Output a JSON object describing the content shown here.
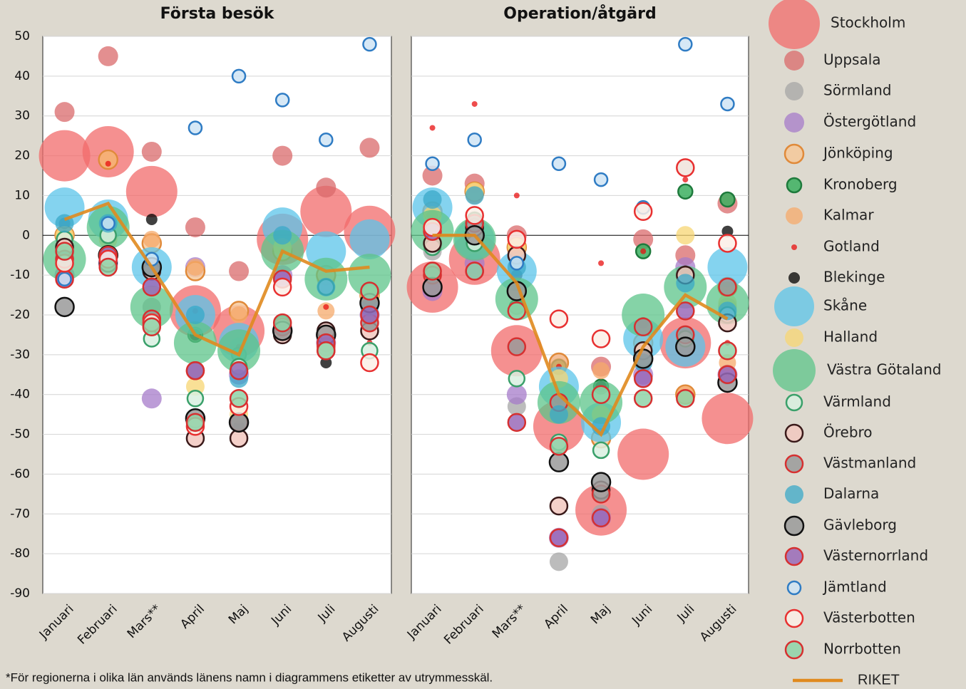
{
  "chart_data": [
    {
      "type": "scatter",
      "title": "Första besök",
      "categories": [
        "Januari",
        "Februari",
        "Mars**",
        "April",
        "Maj",
        "Juni",
        "Juli",
        "Augusti"
      ],
      "ylim": [
        -90,
        50
      ],
      "yticks": [
        50,
        40,
        30,
        20,
        10,
        0,
        -10,
        -20,
        -30,
        -40,
        -50,
        -60,
        -70,
        -80,
        -90
      ],
      "grid": true,
      "series": [
        {
          "name": "Stockholm",
          "marker": "filled",
          "color": "#f26b6b",
          "fill": "#f26b6b",
          "values": [
            20,
            21,
            11,
            -19,
            -24,
            -1,
            6,
            1
          ]
        },
        {
          "name": "Uppsala",
          "marker": "filled",
          "color": "#d9696b",
          "fill": "#d9696b",
          "values": [
            31,
            45,
            21,
            2,
            -9,
            20,
            12,
            22
          ]
        },
        {
          "name": "Sörmland",
          "marker": "filled",
          "color": "#a6a6a6",
          "fill": "#a6a6a6",
          "values": [
            -5,
            0,
            -18,
            -20,
            -28,
            -3,
            -11,
            -17
          ]
        },
        {
          "name": "Östergötland",
          "marker": "filled",
          "color": "#a57bc9",
          "fill": "#a57bc9",
          "values": [
            -10,
            -7,
            -41,
            -8,
            -35,
            -10,
            -27,
            -20
          ]
        },
        {
          "name": "Jönköping",
          "marker": "ring",
          "color": "#e08a3a",
          "fill": "#f6c89a",
          "values": [
            0,
            19,
            -2,
            -9,
            -19,
            -4,
            -10,
            -15
          ]
        },
        {
          "name": "Kronoberg",
          "marker": "ring",
          "color": "#1e7a3c",
          "fill": "#3cb060",
          "values": [
            -5,
            -7,
            -22,
            -25,
            -30,
            -22,
            -28,
            -14
          ]
        },
        {
          "name": "Kalmar",
          "marker": "filled",
          "color": "#f5a96b",
          "fill": "#f5a96b",
          "values": [
            -1,
            19,
            -1,
            -8,
            -20,
            -3,
            -19,
            -15
          ]
        },
        {
          "name": "Gotland",
          "marker": "filled",
          "color": "#e81010",
          "fill": "#e81010",
          "values": [
            -2,
            18,
            -9,
            -19,
            -28,
            -4,
            -18,
            -27
          ]
        },
        {
          "name": "Blekinge",
          "marker": "filled",
          "color": "#000000",
          "fill": "#000000",
          "values": [
            3,
            -5,
            4,
            -25,
            -48,
            -25,
            -32,
            -23
          ]
        },
        {
          "name": "Skåne",
          "marker": "filled",
          "color": "#5bc4ea",
          "fill": "#5bc4ea",
          "values": [
            7,
            4,
            -8,
            -20,
            -27,
            2,
            -4,
            -1
          ]
        },
        {
          "name": "Halland",
          "marker": "filled",
          "color": "#f7d673",
          "fill": "#f7d673",
          "values": [
            0,
            -1,
            -8,
            -38,
            -45,
            -3,
            -29,
            -15
          ]
        },
        {
          "name": "Västra Götaland",
          "marker": "filled",
          "color": "#5cc489",
          "fill": "#5cc489",
          "values": [
            -6,
            2,
            -18,
            -27,
            -29,
            -4,
            -11,
            -10
          ]
        },
        {
          "name": "Värmland",
          "marker": "ring",
          "color": "#3aa06a",
          "fill": "#d8f0e0",
          "values": [
            -1,
            0,
            -26,
            -41,
            -33,
            -23,
            -13,
            -29
          ]
        },
        {
          "name": "Örebro",
          "marker": "ring",
          "color": "#3a1a1a",
          "fill": "#f2c8c0",
          "values": [
            -3,
            -7,
            -9,
            -51,
            -51,
            -25,
            -24,
            -24
          ]
        },
        {
          "name": "Västmanland",
          "marker": "ring",
          "color": "#d63030",
          "fill": "#9a9a9a",
          "values": [
            -6,
            -5,
            -21,
            -34,
            -47,
            -23,
            -28,
            -22
          ]
        },
        {
          "name": "Dalarna",
          "marker": "filled",
          "color": "#3aa8c8",
          "fill": "#3aa8c8",
          "values": [
            3,
            3,
            -8,
            -20,
            -36,
            0,
            -13,
            -18
          ]
        },
        {
          "name": "Gävleborg",
          "marker": "ring",
          "color": "#111111",
          "fill": "#9a9a9a",
          "values": [
            -18,
            -5,
            -8,
            -46,
            -47,
            -24,
            -25,
            -17
          ]
        },
        {
          "name": "Västernorrland",
          "marker": "ring",
          "color": "#d63030",
          "fill": "#9a6ab8",
          "values": [
            -11,
            -5,
            -13,
            -34,
            -34,
            -11,
            -27,
            -20
          ]
        },
        {
          "name": "Jämtland",
          "marker": "ring",
          "color": "#2f7cc4",
          "fill": "#cfe4f4",
          "values": [
            -11,
            3,
            -6,
            27,
            40,
            34,
            24,
            48
          ]
        },
        {
          "name": "Västerbotten",
          "marker": "ring",
          "color": "#e83030",
          "fill": "#fbeee6",
          "values": [
            -7,
            -6,
            -22,
            -48,
            -43,
            -13,
            -29,
            -32
          ]
        },
        {
          "name": "Norrbotten",
          "marker": "ring",
          "color": "#d63030",
          "fill": "#8fd4a8",
          "values": [
            -4,
            -8,
            -23,
            -47,
            -41,
            -22,
            -29,
            -14
          ]
        },
        {
          "name": "RIKET",
          "marker": "line",
          "color": "#e08a1e",
          "values": [
            4,
            8,
            -8,
            -25,
            -30,
            -4,
            -9,
            -8
          ]
        }
      ]
    },
    {
      "type": "scatter",
      "title": "Operation/åtgärd",
      "categories": [
        "Januari",
        "Februari",
        "Mars**",
        "April",
        "Maj",
        "Juni",
        "Juli",
        "Augusti"
      ],
      "ylim": [
        -90,
        50
      ],
      "series": [
        {
          "values": [
            -13,
            -6,
            -29,
            -48,
            -69,
            -55,
            -27,
            -46
          ]
        },
        {
          "values": [
            15,
            13,
            0,
            -32,
            -33,
            -1,
            -5,
            8
          ]
        },
        {
          "values": [
            -4,
            0,
            -43,
            -82,
            -70,
            -29,
            17,
            -18
          ]
        },
        {
          "values": [
            -14,
            -7,
            -40,
            -76,
            -71,
            -35,
            -8,
            -35
          ]
        },
        {
          "values": [
            6,
            11,
            -3,
            -32,
            -51,
            -27,
            -40,
            -13
          ]
        },
        {
          "values": [
            5,
            4,
            -18,
            -33,
            -38,
            -4,
            11,
            9
          ]
        },
        {
          "values": [
            6,
            10,
            -4,
            -33,
            -34,
            -29,
            -40,
            -32
          ]
        },
        {
          "values": [
            27,
            33,
            10,
            -33,
            -7,
            -4,
            14,
            -27
          ]
        },
        {
          "values": [
            5,
            3,
            -10,
            -41,
            -38,
            -22,
            -9,
            1
          ]
        },
        {
          "values": [
            7,
            -1,
            -9,
            -38,
            -47,
            -26,
            -28,
            -8
          ]
        },
        {
          "values": [
            5,
            11,
            -3,
            -36,
            -45,
            -29,
            0,
            -17
          ]
        },
        {
          "values": [
            1,
            -1,
            -16,
            -42,
            -42,
            -20,
            -13,
            -17
          ]
        },
        {
          "values": [
            -3,
            -2,
            -36,
            -52,
            -54,
            -31,
            -26,
            -20
          ]
        },
        {
          "values": [
            -2,
            2,
            -5,
            -68,
            -64,
            -29,
            -10,
            -22
          ]
        },
        {
          "values": [
            -10,
            3,
            -28,
            -42,
            -65,
            -23,
            -25,
            -13
          ]
        },
        {
          "values": [
            9,
            10,
            -8,
            -45,
            -48,
            -32,
            -12,
            -19
          ]
        },
        {
          "values": [
            -13,
            0,
            -14,
            -57,
            -62,
            -31,
            -28,
            -37
          ]
        },
        {
          "values": [
            1,
            -9,
            -47,
            -76,
            -71,
            -36,
            -19,
            -35
          ]
        },
        {
          "values": [
            18,
            24,
            -7,
            18,
            14,
            7,
            48,
            33
          ]
        },
        {
          "values": [
            2,
            5,
            -1,
            -21,
            -26,
            6,
            17,
            -2
          ]
        },
        {
          "values": [
            -9,
            -9,
            -19,
            -53,
            -40,
            -41,
            -41,
            -29
          ]
        },
        {
          "values": [
            0,
            0,
            -12,
            -40,
            -50,
            -28,
            -15,
            -21
          ]
        }
      ]
    }
  ],
  "footnote": "*För regionerna i olika län används länens namn i diagrammens etiketter av utrymmesskäl."
}
